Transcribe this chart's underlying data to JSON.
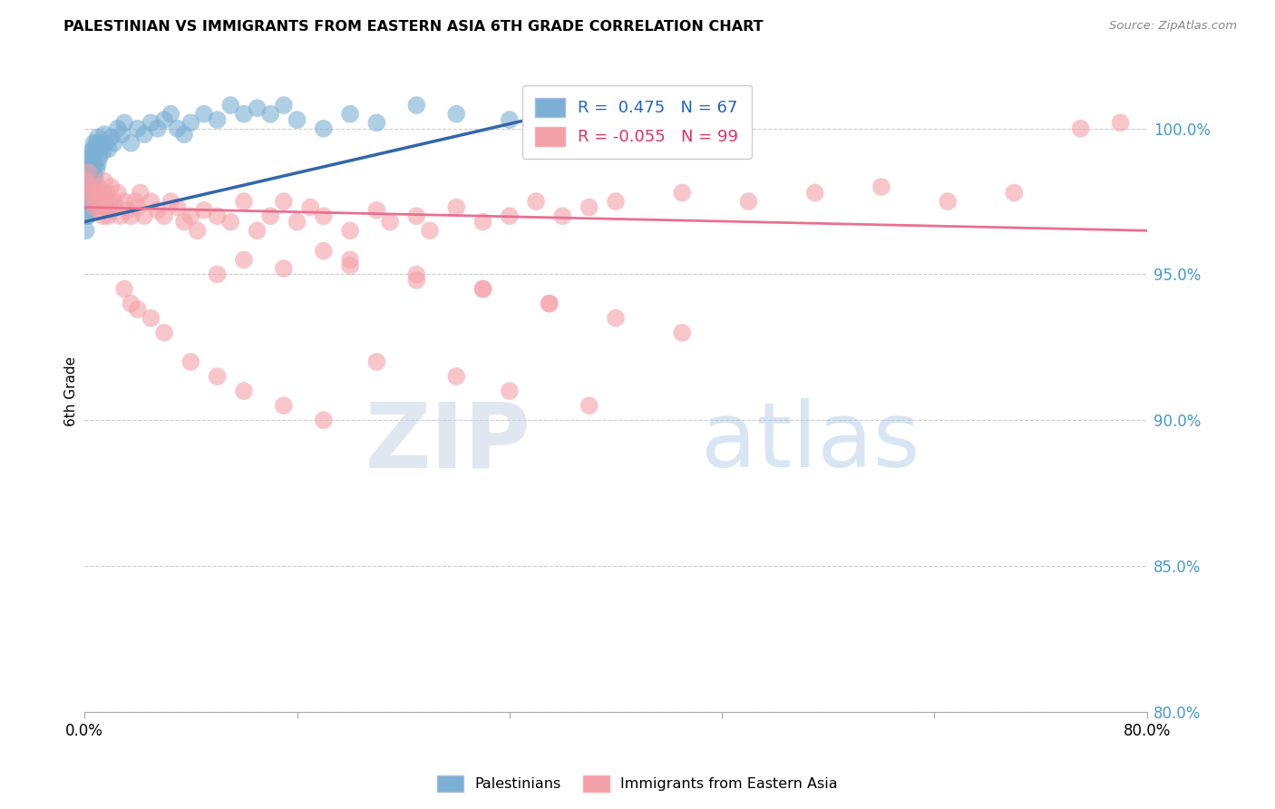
{
  "title": "PALESTINIAN VS IMMIGRANTS FROM EASTERN ASIA 6TH GRADE CORRELATION CHART",
  "source": "Source: ZipAtlas.com",
  "ylabel": "6th Grade",
  "y_ticks": [
    80.0,
    85.0,
    90.0,
    95.0,
    100.0
  ],
  "x_min": 0.0,
  "x_max": 80.0,
  "y_min": 80.0,
  "y_max": 102.0,
  "blue_R": 0.475,
  "blue_N": 67,
  "pink_R": -0.055,
  "pink_N": 99,
  "blue_color": "#7BAFD4",
  "pink_color": "#F4A0A8",
  "blue_line_color": "#3366AA",
  "pink_line_color": "#E87090",
  "legend_label_blue": "Palestinians",
  "legend_label_pink": "Immigrants from Eastern Asia",
  "blue_points_x": [
    0.1,
    0.15,
    0.2,
    0.25,
    0.3,
    0.3,
    0.35,
    0.35,
    0.4,
    0.4,
    0.45,
    0.45,
    0.5,
    0.5,
    0.5,
    0.55,
    0.55,
    0.6,
    0.6,
    0.65,
    0.65,
    0.7,
    0.7,
    0.75,
    0.8,
    0.8,
    0.9,
    0.9,
    1.0,
    1.0,
    1.1,
    1.2,
    1.3,
    1.4,
    1.5,
    1.6,
    1.8,
    2.0,
    2.2,
    2.5,
    2.8,
    3.0,
    3.5,
    4.0,
    4.5,
    5.0,
    5.5,
    6.0,
    6.5,
    7.0,
    7.5,
    8.0,
    9.0,
    10.0,
    11.0,
    12.0,
    13.0,
    14.0,
    15.0,
    16.0,
    18.0,
    20.0,
    22.0,
    25.0,
    28.0,
    32.0,
    38.0
  ],
  "blue_points_y": [
    96.5,
    97.0,
    97.5,
    97.0,
    97.8,
    98.2,
    97.5,
    98.5,
    97.2,
    98.8,
    97.8,
    99.0,
    97.5,
    98.3,
    99.2,
    97.8,
    98.7,
    98.0,
    99.0,
    98.2,
    99.3,
    98.5,
    99.5,
    98.8,
    98.3,
    99.2,
    98.6,
    99.5,
    98.8,
    99.7,
    99.0,
    99.3,
    99.5,
    99.2,
    99.8,
    99.5,
    99.3,
    99.7,
    99.5,
    100.0,
    99.8,
    100.2,
    99.5,
    100.0,
    99.8,
    100.2,
    100.0,
    100.3,
    100.5,
    100.0,
    99.8,
    100.2,
    100.5,
    100.3,
    100.8,
    100.5,
    100.7,
    100.5,
    100.8,
    100.3,
    100.0,
    100.5,
    100.2,
    100.8,
    100.5,
    100.3,
    100.7
  ],
  "pink_points_x": [
    0.2,
    0.3,
    0.4,
    0.5,
    0.6,
    0.7,
    0.8,
    0.9,
    1.0,
    1.0,
    1.1,
    1.2,
    1.3,
    1.4,
    1.5,
    1.5,
    1.6,
    1.7,
    1.8,
    1.9,
    2.0,
    2.0,
    2.2,
    2.3,
    2.5,
    2.7,
    3.0,
    3.2,
    3.5,
    3.8,
    4.0,
    4.2,
    4.5,
    5.0,
    5.5,
    6.0,
    6.5,
    7.0,
    7.5,
    8.0,
    8.5,
    9.0,
    10.0,
    11.0,
    12.0,
    13.0,
    14.0,
    15.0,
    16.0,
    17.0,
    18.0,
    20.0,
    22.0,
    23.0,
    25.0,
    26.0,
    28.0,
    30.0,
    32.0,
    34.0,
    36.0,
    38.0,
    40.0,
    45.0,
    50.0,
    55.0,
    60.0,
    65.0,
    70.0,
    75.0,
    78.0,
    10.0,
    12.0,
    15.0,
    18.0,
    20.0,
    25.0,
    30.0,
    35.0,
    40.0,
    45.0,
    20.0,
    25.0,
    30.0,
    35.0,
    22.0,
    28.0,
    32.0,
    38.0,
    18.0,
    15.0,
    12.0,
    10.0,
    8.0,
    6.0,
    5.0,
    4.0,
    3.5,
    3.0
  ],
  "pink_points_y": [
    98.2,
    98.5,
    97.8,
    98.0,
    97.5,
    97.8,
    97.3,
    97.6,
    97.8,
    98.0,
    97.5,
    97.2,
    97.8,
    97.0,
    97.5,
    98.2,
    97.3,
    97.8,
    97.0,
    97.5,
    97.2,
    98.0,
    97.5,
    97.3,
    97.8,
    97.0,
    97.5,
    97.2,
    97.0,
    97.5,
    97.3,
    97.8,
    97.0,
    97.5,
    97.2,
    97.0,
    97.5,
    97.3,
    96.8,
    97.0,
    96.5,
    97.2,
    97.0,
    96.8,
    97.5,
    96.5,
    97.0,
    97.5,
    96.8,
    97.3,
    97.0,
    96.5,
    97.2,
    96.8,
    97.0,
    96.5,
    97.3,
    96.8,
    97.0,
    97.5,
    97.0,
    97.3,
    97.5,
    97.8,
    97.5,
    97.8,
    98.0,
    97.5,
    97.8,
    100.0,
    100.2,
    95.0,
    95.5,
    95.2,
    95.8,
    95.3,
    94.8,
    94.5,
    94.0,
    93.5,
    93.0,
    95.5,
    95.0,
    94.5,
    94.0,
    92.0,
    91.5,
    91.0,
    90.5,
    90.0,
    90.5,
    91.0,
    91.5,
    92.0,
    93.0,
    93.5,
    93.8,
    94.0,
    94.5
  ]
}
